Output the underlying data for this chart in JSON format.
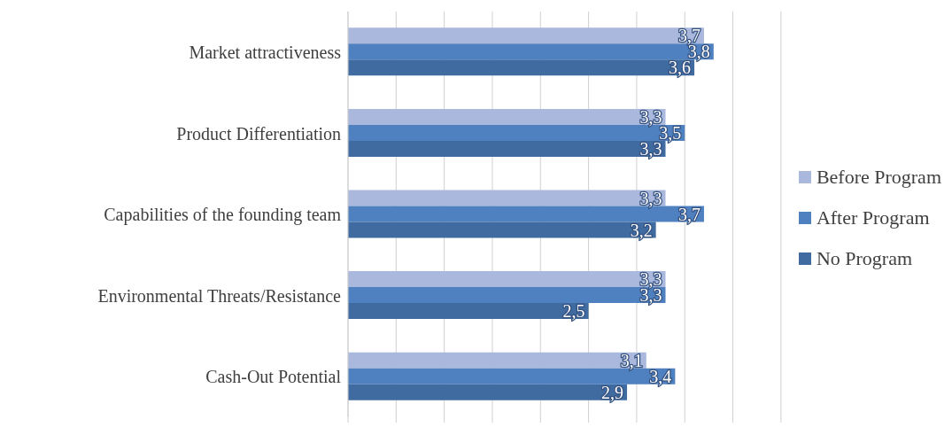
{
  "chart_data": {
    "type": "bar",
    "orientation": "horizontal",
    "categories": [
      "Market attractiveness",
      "Product Differentiation",
      "Capabilities of the founding team",
      "Environmental Threats/Resistance",
      "Cash-Out Potential"
    ],
    "series": [
      {
        "name": "Before Program",
        "color": "#a9b8dc",
        "values": [
          3.7,
          3.3,
          3.3,
          3.3,
          3.1
        ],
        "value_labels": [
          "3,7",
          "3,3",
          "3,3",
          "3,3",
          "3,1"
        ]
      },
      {
        "name": "After Program",
        "color": "#4f81c0",
        "values": [
          3.8,
          3.5,
          3.7,
          3.3,
          3.4
        ],
        "value_labels": [
          "3,8",
          "3,5",
          "3,7",
          "3,3",
          "3,4"
        ]
      },
      {
        "name": "No Program",
        "color": "#3f6ba1",
        "values": [
          3.6,
          3.3,
          3.2,
          2.5,
          2.9
        ],
        "value_labels": [
          "3,6",
          "3,3",
          "3,2",
          "2,5",
          "2,9"
        ]
      }
    ],
    "xlim": [
      0,
      4.5
    ],
    "xticks": [
      {
        "value": 0,
        "label": null
      },
      {
        "value": 0.5,
        "label": null
      },
      {
        "value": 1,
        "label": null
      },
      {
        "value": 1.5,
        "label": null
      },
      {
        "value": 2,
        "label": null
      },
      {
        "value": 2.5,
        "label": null
      },
      {
        "value": 3,
        "label": null
      },
      {
        "value": 3.5,
        "label": null
      },
      {
        "value": 4,
        "label": null
      },
      {
        "value": 4.5,
        "label": null
      }
    ],
    "grid": "x",
    "legend": "right"
  }
}
